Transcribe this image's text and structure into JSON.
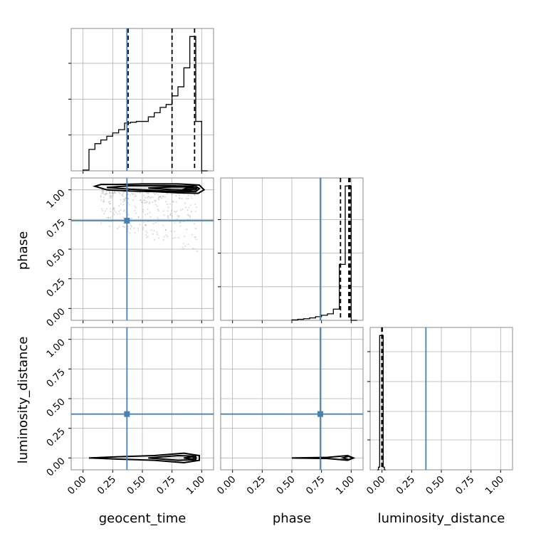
{
  "figure": {
    "type": "corner_plot",
    "truth_color": "#4682b4",
    "parameters": [
      "geocent_time",
      "phase",
      "luminosity_distance"
    ],
    "truth": {
      "geocent_time": 0.37,
      "phase": 0.74,
      "luminosity_distance": 0.37
    },
    "ticks": [
      "0.00",
      "0.25",
      "0.50",
      "0.75",
      "1.00"
    ]
  },
  "chart_data": {
    "type": "corner",
    "axes_range": [
      -0.1,
      1.1
    ],
    "marginals": [
      {
        "parameter": "geocent_time",
        "bin_edges": [
          0.0,
          0.05,
          0.1,
          0.15,
          0.2,
          0.25,
          0.3,
          0.35,
          0.4,
          0.45,
          0.5,
          0.55,
          0.6,
          0.65,
          0.7,
          0.75,
          0.8,
          0.85,
          0.9,
          0.95,
          1.0,
          1.05
        ],
        "density": [
          0.02,
          0.52,
          0.66,
          0.75,
          0.84,
          0.92,
          1.0,
          1.16,
          1.18,
          1.2,
          1.2,
          1.31,
          1.41,
          1.54,
          1.61,
          1.82,
          2.04,
          2.5,
          3.26,
          1.2,
          0.0
        ],
        "quantiles": [
          0.38,
          0.75,
          0.94
        ],
        "truth": 0.37
      },
      {
        "parameter": "phase",
        "bin_edges": [
          0.5,
          0.55,
          0.6,
          0.65,
          0.7,
          0.75,
          0.8,
          0.85,
          0.9,
          0.95,
          1.0,
          1.05
        ],
        "density": [
          0.02,
          0.05,
          0.08,
          0.12,
          0.18,
          0.25,
          0.32,
          0.55,
          2.75,
          6.6,
          0.0
        ],
        "quantiles": [
          0.91,
          0.98,
          0.99
        ],
        "truth": 0.74
      },
      {
        "parameter": "luminosity_distance",
        "bin_edges": [
          -0.04,
          -0.03,
          -0.02,
          -0.01,
          0.0,
          0.01,
          0.02,
          0.03
        ],
        "density": [
          0.0,
          0.02,
          1.0,
          1.0,
          1.0,
          0.02,
          0.0
        ],
        "quantiles": [
          -0.002,
          0.0,
          0.002
        ],
        "truth": 0.37
      }
    ],
    "joint_contours": [
      {
        "x": "geocent_time",
        "y": "phase",
        "levels": [
          [
            [
              0.1,
              1.03
            ],
            [
              0.2,
              1.0
            ],
            [
              0.4,
              0.99
            ],
            [
              0.6,
              0.985
            ],
            [
              0.8,
              0.975
            ],
            [
              0.97,
              0.97
            ],
            [
              1.02,
              1.0
            ],
            [
              0.98,
              1.04
            ],
            [
              0.8,
              1.05
            ],
            [
              0.5,
              1.05
            ],
            [
              0.3,
              1.045
            ],
            [
              0.15,
              1.045
            ]
          ],
          [
            [
              0.2,
              1.02
            ],
            [
              0.4,
              1.005
            ],
            [
              0.6,
              0.995
            ],
            [
              0.8,
              0.985
            ],
            [
              0.95,
              0.985
            ],
            [
              0.98,
              1.01
            ],
            [
              0.95,
              1.03
            ],
            [
              0.7,
              1.035
            ],
            [
              0.4,
              1.035
            ]
          ],
          [
            [
              0.55,
              1.015
            ],
            [
              0.75,
              1.0
            ],
            [
              0.9,
              0.995
            ],
            [
              0.96,
              1.01
            ],
            [
              0.9,
              1.025
            ],
            [
              0.75,
              1.025
            ]
          ],
          [
            [
              0.85,
              1.005
            ],
            [
              0.95,
              1.0
            ],
            [
              0.96,
              1.015
            ],
            [
              0.88,
              1.02
            ]
          ]
        ],
        "scatter_region": {
          "x": [
            0.15,
            0.98
          ],
          "y": [
            0.45,
            1.0
          ]
        }
      },
      {
        "x": "geocent_time",
        "y": "luminosity_distance",
        "levels": [
          [
            [
              0.05,
              0.0
            ],
            [
              0.3,
              -0.01
            ],
            [
              0.6,
              -0.02
            ],
            [
              0.85,
              -0.04
            ],
            [
              0.98,
              -0.02
            ],
            [
              0.98,
              0.02
            ],
            [
              0.85,
              0.04
            ],
            [
              0.6,
              0.02
            ],
            [
              0.3,
              0.01
            ]
          ],
          [
            [
              0.55,
              0.0
            ],
            [
              0.8,
              -0.02
            ],
            [
              0.95,
              -0.015
            ],
            [
              0.95,
              0.015
            ],
            [
              0.8,
              0.02
            ]
          ],
          [
            [
              0.85,
              0.0
            ],
            [
              0.92,
              -0.01
            ],
            [
              0.95,
              0.0
            ],
            [
              0.92,
              0.01
            ]
          ]
        ]
      },
      {
        "x": "phase",
        "y": "luminosity_distance",
        "levels": [
          [
            [
              0.5,
              0.0
            ],
            [
              0.8,
              -0.005
            ],
            [
              0.97,
              -0.02
            ],
            [
              1.02,
              0.0
            ],
            [
              0.97,
              0.02
            ],
            [
              0.8,
              0.005
            ]
          ],
          [
            [
              0.93,
              0.0
            ],
            [
              0.98,
              -0.015
            ],
            [
              1.01,
              0.0
            ],
            [
              0.98,
              0.015
            ]
          ]
        ]
      }
    ]
  }
}
